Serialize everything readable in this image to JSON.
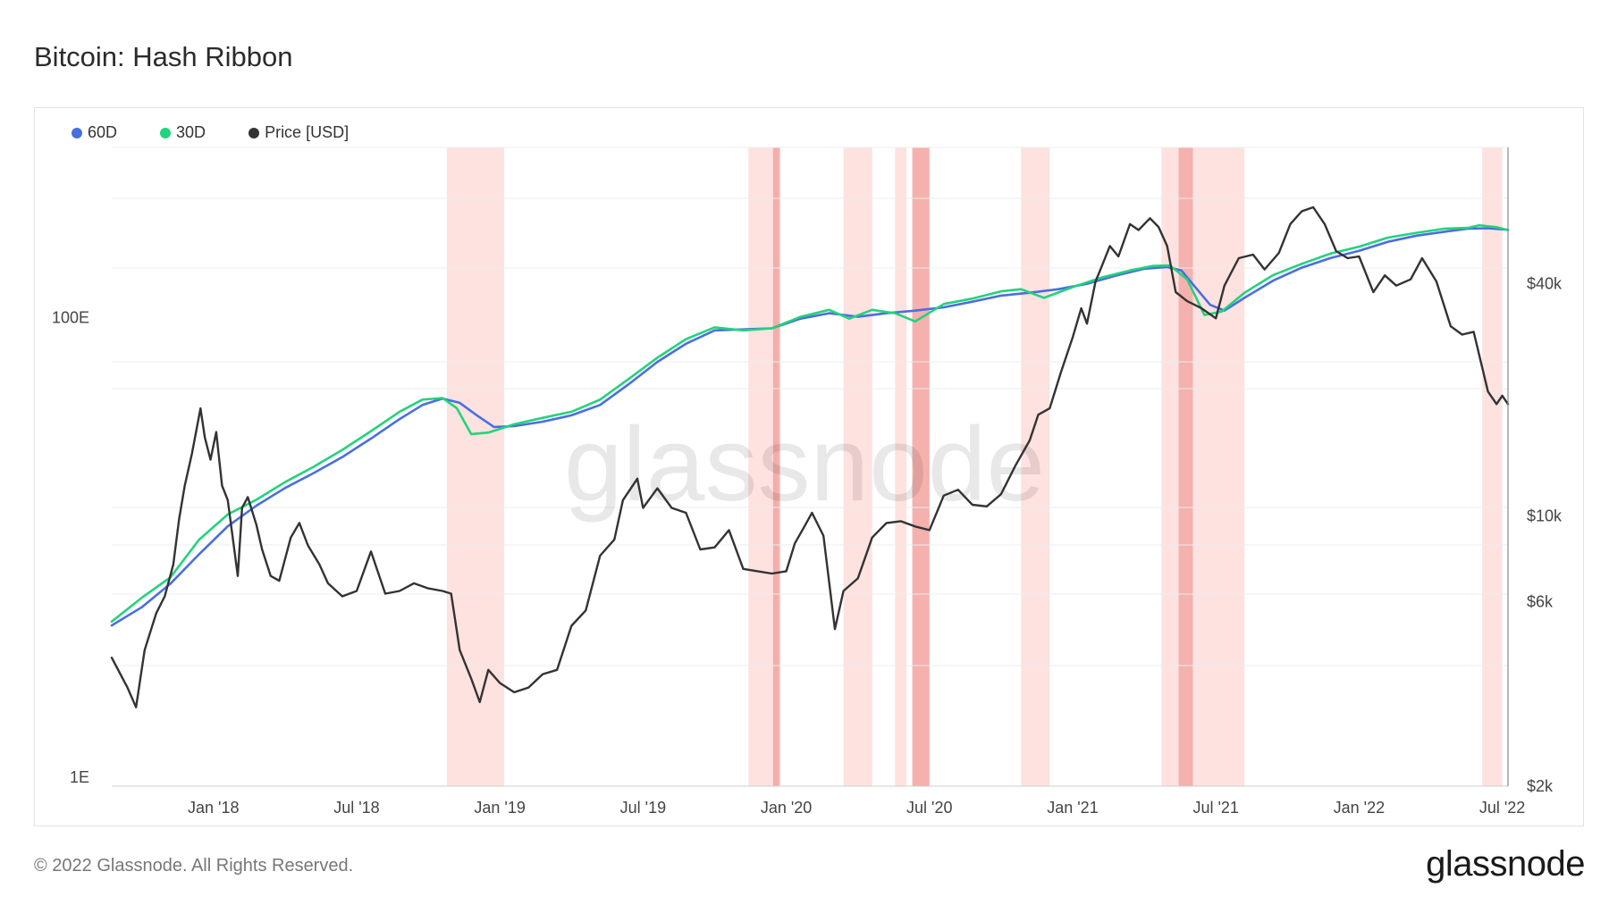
{
  "page": {
    "copyright": "© 2022 Glassnode. All Rights Reserved.",
    "logo": "glassnode",
    "watermark": "glassnode"
  },
  "chart_data": {
    "type": "line",
    "title": "Bitcoin: Hash Ribbon",
    "legend": [
      {
        "name": "60D",
        "color": "#4a6ee0"
      },
      {
        "name": "30D",
        "color": "#22d37c"
      },
      {
        "name": "Price [USD]",
        "color": "#333333"
      }
    ],
    "x_ticks": [
      "Jan '18",
      "Jul '18",
      "Jan '19",
      "Jul '19",
      "Jan '20",
      "Jul '20",
      "Jan '21",
      "Jul '21",
      "Jan '22",
      "Jul '22"
    ],
    "x_tick_dates": [
      2018.0,
      2018.5,
      2019.0,
      2019.5,
      2020.0,
      2020.5,
      2021.0,
      2021.5,
      2022.0,
      2022.5
    ],
    "x_range": [
      2017.645,
      2022.52
    ],
    "left_axis": {
      "label_ticks": [
        "1E",
        "100E"
      ],
      "tick_values": [
        1,
        100
      ],
      "scale": "log",
      "range": [
        1,
        600
      ]
    },
    "right_axis": {
      "label_ticks": [
        "$2k",
        "$6k",
        "$10k",
        "$40k"
      ],
      "tick_values": [
        2000,
        6000,
        10000,
        40000
      ],
      "scale": "log",
      "range": [
        2000,
        90000
      ]
    },
    "capitulation_bands": [
      {
        "start": 2018.815,
        "end": 2019.015,
        "intensity": "light"
      },
      {
        "start": 2019.868,
        "end": 2019.968,
        "intensity": "light"
      },
      {
        "start": 2019.954,
        "end": 2019.978,
        "intensity": "dark"
      },
      {
        "start": 2020.2,
        "end": 2020.3,
        "intensity": "light"
      },
      {
        "start": 2020.38,
        "end": 2020.42,
        "intensity": "light"
      },
      {
        "start": 2020.44,
        "end": 2020.5,
        "intensity": "dark"
      },
      {
        "start": 2020.82,
        "end": 2020.92,
        "intensity": "light"
      },
      {
        "start": 2021.31,
        "end": 2021.37,
        "intensity": "light"
      },
      {
        "start": 2021.37,
        "end": 2021.42,
        "intensity": "dark"
      },
      {
        "start": 2021.42,
        "end": 2021.6,
        "intensity": "light"
      },
      {
        "start": 2022.43,
        "end": 2022.5,
        "intensity": "light"
      }
    ],
    "series": [
      {
        "name": "Price [USD]",
        "axis": "right",
        "color": "#333333",
        "points": [
          [
            2017.645,
            4300
          ],
          [
            2017.7,
            3600
          ],
          [
            2017.73,
            3200
          ],
          [
            2017.76,
            4500
          ],
          [
            2017.8,
            5600
          ],
          [
            2017.83,
            6200
          ],
          [
            2017.86,
            7500
          ],
          [
            2017.88,
            9800
          ],
          [
            2017.9,
            12000
          ],
          [
            2017.925,
            14500
          ],
          [
            2017.955,
            19000
          ],
          [
            2017.97,
            16000
          ],
          [
            2017.99,
            14000
          ],
          [
            2018.01,
            16500
          ],
          [
            2018.03,
            12000
          ],
          [
            2018.05,
            11000
          ],
          [
            2018.07,
            8500
          ],
          [
            2018.085,
            7000
          ],
          [
            2018.1,
            10500
          ],
          [
            2018.12,
            11200
          ],
          [
            2018.15,
            9500
          ],
          [
            2018.17,
            8200
          ],
          [
            2018.2,
            7000
          ],
          [
            2018.23,
            6800
          ],
          [
            2018.27,
            8800
          ],
          [
            2018.3,
            9600
          ],
          [
            2018.33,
            8400
          ],
          [
            2018.37,
            7500
          ],
          [
            2018.4,
            6700
          ],
          [
            2018.45,
            6200
          ],
          [
            2018.5,
            6400
          ],
          [
            2018.55,
            8100
          ],
          [
            2018.6,
            6300
          ],
          [
            2018.65,
            6400
          ],
          [
            2018.7,
            6700
          ],
          [
            2018.75,
            6500
          ],
          [
            2018.8,
            6400
          ],
          [
            2018.83,
            6300
          ],
          [
            2018.86,
            4500
          ],
          [
            2018.9,
            3800
          ],
          [
            2018.93,
            3300
          ],
          [
            2018.96,
            4000
          ],
          [
            2019.0,
            3700
          ],
          [
            2019.05,
            3500
          ],
          [
            2019.1,
            3600
          ],
          [
            2019.15,
            3900
          ],
          [
            2019.2,
            4000
          ],
          [
            2019.25,
            5200
          ],
          [
            2019.3,
            5700
          ],
          [
            2019.35,
            7900
          ],
          [
            2019.4,
            8700
          ],
          [
            2019.43,
            11000
          ],
          [
            2019.48,
            12500
          ],
          [
            2019.5,
            10500
          ],
          [
            2019.55,
            11800
          ],
          [
            2019.6,
            10500
          ],
          [
            2019.65,
            10200
          ],
          [
            2019.7,
            8200
          ],
          [
            2019.75,
            8300
          ],
          [
            2019.8,
            9200
          ],
          [
            2019.85,
            7300
          ],
          [
            2019.9,
            7200
          ],
          [
            2019.95,
            7100
          ],
          [
            2020.0,
            7200
          ],
          [
            2020.03,
            8500
          ],
          [
            2020.06,
            9300
          ],
          [
            2020.09,
            10200
          ],
          [
            2020.13,
            8900
          ],
          [
            2020.17,
            5100
          ],
          [
            2020.2,
            6400
          ],
          [
            2020.25,
            6900
          ],
          [
            2020.3,
            8800
          ],
          [
            2020.35,
            9600
          ],
          [
            2020.4,
            9700
          ],
          [
            2020.45,
            9400
          ],
          [
            2020.5,
            9200
          ],
          [
            2020.55,
            11300
          ],
          [
            2020.6,
            11700
          ],
          [
            2020.65,
            10700
          ],
          [
            2020.7,
            10600
          ],
          [
            2020.75,
            11400
          ],
          [
            2020.8,
            13500
          ],
          [
            2020.85,
            15700
          ],
          [
            2020.88,
            18300
          ],
          [
            2020.92,
            19000
          ],
          [
            2020.96,
            23700
          ],
          [
            2021.0,
            29000
          ],
          [
            2021.03,
            34500
          ],
          [
            2021.05,
            31500
          ],
          [
            2021.08,
            40500
          ],
          [
            2021.1,
            44000
          ],
          [
            2021.13,
            50000
          ],
          [
            2021.16,
            47000
          ],
          [
            2021.2,
            57000
          ],
          [
            2021.23,
            55000
          ],
          [
            2021.27,
            59000
          ],
          [
            2021.3,
            56000
          ],
          [
            2021.33,
            50000
          ],
          [
            2021.36,
            38000
          ],
          [
            2021.4,
            36000
          ],
          [
            2021.45,
            34500
          ],
          [
            2021.5,
            32500
          ],
          [
            2021.53,
            39500
          ],
          [
            2021.58,
            46500
          ],
          [
            2021.63,
            47500
          ],
          [
            2021.67,
            43500
          ],
          [
            2021.72,
            48000
          ],
          [
            2021.76,
            57000
          ],
          [
            2021.8,
            61500
          ],
          [
            2021.84,
            63000
          ],
          [
            2021.88,
            57000
          ],
          [
            2021.92,
            48500
          ],
          [
            2021.96,
            46500
          ],
          [
            2022.0,
            47000
          ],
          [
            2022.05,
            38000
          ],
          [
            2022.09,
            42000
          ],
          [
            2022.13,
            39500
          ],
          [
            2022.18,
            41000
          ],
          [
            2022.22,
            46500
          ],
          [
            2022.27,
            40500
          ],
          [
            2022.32,
            31000
          ],
          [
            2022.36,
            29500
          ],
          [
            2022.4,
            30000
          ],
          [
            2022.45,
            21000
          ],
          [
            2022.48,
            19500
          ],
          [
            2022.5,
            20500
          ],
          [
            2022.52,
            19500
          ]
        ]
      },
      {
        "name": "60D",
        "axis": "left",
        "color": "#4a6ee0",
        "points": [
          [
            2017.645,
            5.0
          ],
          [
            2017.75,
            6.0
          ],
          [
            2017.85,
            7.6
          ],
          [
            2017.95,
            10.2
          ],
          [
            2018.05,
            13.5
          ],
          [
            2018.15,
            16.6
          ],
          [
            2018.25,
            19.8
          ],
          [
            2018.35,
            23.0
          ],
          [
            2018.45,
            27.0
          ],
          [
            2018.55,
            32.5
          ],
          [
            2018.65,
            39.5
          ],
          [
            2018.73,
            45.5
          ],
          [
            2018.8,
            48.5
          ],
          [
            2018.86,
            46.5
          ],
          [
            2018.92,
            41.0
          ],
          [
            2018.98,
            36.5
          ],
          [
            2019.05,
            36.8
          ],
          [
            2019.15,
            38.5
          ],
          [
            2019.25,
            41.0
          ],
          [
            2019.35,
            45.5
          ],
          [
            2019.45,
            56.0
          ],
          [
            2019.55,
            70.0
          ],
          [
            2019.65,
            84.0
          ],
          [
            2019.75,
            96.0
          ],
          [
            2019.85,
            97.0
          ],
          [
            2019.95,
            98.0
          ],
          [
            2020.05,
            108.0
          ],
          [
            2020.15,
            114.0
          ],
          [
            2020.25,
            110.0
          ],
          [
            2020.35,
            114.0
          ],
          [
            2020.45,
            117.0
          ],
          [
            2020.55,
            121.0
          ],
          [
            2020.65,
            128.0
          ],
          [
            2020.75,
            136.0
          ],
          [
            2020.85,
            140.0
          ],
          [
            2020.95,
            145.0
          ],
          [
            2021.05,
            153.0
          ],
          [
            2021.15,
            166.0
          ],
          [
            2021.25,
            178.0
          ],
          [
            2021.33,
            181.0
          ],
          [
            2021.38,
            175.0
          ],
          [
            2021.43,
            147.0
          ],
          [
            2021.48,
            124.0
          ],
          [
            2021.53,
            117.0
          ],
          [
            2021.6,
            133.0
          ],
          [
            2021.7,
            158.0
          ],
          [
            2021.8,
            180.0
          ],
          [
            2021.9,
            198.0
          ],
          [
            2022.0,
            213.0
          ],
          [
            2022.1,
            233.0
          ],
          [
            2022.2,
            248.0
          ],
          [
            2022.3,
            258.0
          ],
          [
            2022.38,
            266.0
          ],
          [
            2022.45,
            267.0
          ],
          [
            2022.52,
            263.0
          ]
        ]
      },
      {
        "name": "30D",
        "axis": "left",
        "color": "#22d37c",
        "points": [
          [
            2017.645,
            5.2
          ],
          [
            2017.75,
            6.6
          ],
          [
            2017.85,
            8.1
          ],
          [
            2017.95,
            11.8
          ],
          [
            2018.05,
            15.2
          ],
          [
            2018.15,
            17.6
          ],
          [
            2018.25,
            21.0
          ],
          [
            2018.35,
            24.5
          ],
          [
            2018.45,
            29.0
          ],
          [
            2018.55,
            35.0
          ],
          [
            2018.65,
            42.5
          ],
          [
            2018.73,
            48.0
          ],
          [
            2018.8,
            48.8
          ],
          [
            2018.85,
            44.0
          ],
          [
            2018.9,
            34.0
          ],
          [
            2018.96,
            34.5
          ],
          [
            2019.05,
            37.5
          ],
          [
            2019.15,
            40.0
          ],
          [
            2019.25,
            42.5
          ],
          [
            2019.35,
            48.0
          ],
          [
            2019.45,
            59.0
          ],
          [
            2019.55,
            73.0
          ],
          [
            2019.65,
            88.0
          ],
          [
            2019.75,
            99.0
          ],
          [
            2019.85,
            96.0
          ],
          [
            2019.95,
            98.0
          ],
          [
            2020.05,
            110.0
          ],
          [
            2020.15,
            118.0
          ],
          [
            2020.22,
            108.0
          ],
          [
            2020.3,
            118.0
          ],
          [
            2020.38,
            114.0
          ],
          [
            2020.45,
            105.0
          ],
          [
            2020.55,
            125.0
          ],
          [
            2020.65,
            132.0
          ],
          [
            2020.75,
            142.0
          ],
          [
            2020.82,
            145.0
          ],
          [
            2020.9,
            133.0
          ],
          [
            2021.0,
            148.0
          ],
          [
            2021.1,
            163.0
          ],
          [
            2021.2,
            175.0
          ],
          [
            2021.28,
            183.0
          ],
          [
            2021.34,
            184.0
          ],
          [
            2021.4,
            160.0
          ],
          [
            2021.46,
            112.0
          ],
          [
            2021.52,
            116.0
          ],
          [
            2021.6,
            140.0
          ],
          [
            2021.7,
            167.0
          ],
          [
            2021.8,
            187.0
          ],
          [
            2021.9,
            207.0
          ],
          [
            2022.0,
            222.0
          ],
          [
            2022.1,
            243.0
          ],
          [
            2022.2,
            255.0
          ],
          [
            2022.3,
            266.0
          ],
          [
            2022.38,
            268.0
          ],
          [
            2022.42,
            275.0
          ],
          [
            2022.48,
            270.0
          ],
          [
            2022.52,
            262.0
          ]
        ]
      }
    ]
  }
}
